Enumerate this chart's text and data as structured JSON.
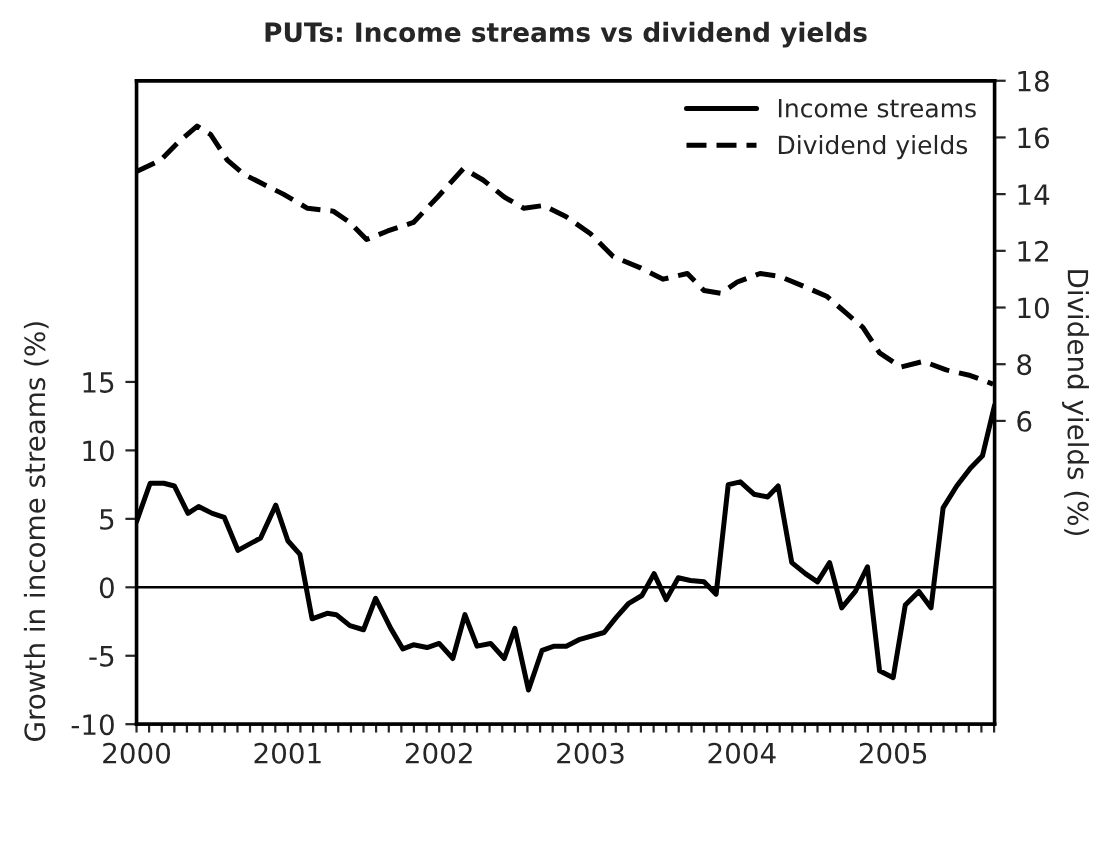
{
  "chart_data": {
    "type": "line",
    "title": "PUTs: Income streams vs dividend yields",
    "ylabel": "Growth in income streams (%)",
    "y2label": "Dividend yields (%)",
    "xlim": [
      2000,
      2005.67
    ],
    "ylim": [
      -10,
      37
    ],
    "y2lim": [
      -4.7,
      18
    ],
    "yticks": [
      -10,
      -5,
      0,
      5,
      10,
      15
    ],
    "y2ticks": [
      6,
      8,
      10,
      12,
      14,
      16,
      18
    ],
    "xticks": [
      2000,
      {
        "value": 2000.083,
        "label": null
      },
      {
        "value": 2000.167,
        "label": null
      },
      {
        "value": 2000.25,
        "label": null
      },
      {
        "value": 2000.333,
        "label": null
      },
      {
        "value": 2000.417,
        "label": null
      },
      {
        "value": 2000.5,
        "label": null
      },
      {
        "value": 2000.583,
        "label": null
      },
      {
        "value": 2000.667,
        "label": null
      },
      {
        "value": 2000.75,
        "label": null
      },
      {
        "value": 2000.833,
        "label": null
      },
      {
        "value": 2000.917,
        "label": null
      },
      2001,
      {
        "value": 2001.083,
        "label": null
      },
      {
        "value": 2001.167,
        "label": null
      },
      {
        "value": 2001.25,
        "label": null
      },
      {
        "value": 2001.333,
        "label": null
      },
      {
        "value": 2001.417,
        "label": null
      },
      {
        "value": 2001.5,
        "label": null
      },
      {
        "value": 2001.583,
        "label": null
      },
      {
        "value": 2001.667,
        "label": null
      },
      {
        "value": 2001.75,
        "label": null
      },
      {
        "value": 2001.833,
        "label": null
      },
      {
        "value": 2001.917,
        "label": null
      },
      2002,
      {
        "value": 2002.083,
        "label": null
      },
      {
        "value": 2002.167,
        "label": null
      },
      {
        "value": 2002.25,
        "label": null
      },
      {
        "value": 2002.333,
        "label": null
      },
      {
        "value": 2002.417,
        "label": null
      },
      {
        "value": 2002.5,
        "label": null
      },
      {
        "value": 2002.583,
        "label": null
      },
      {
        "value": 2002.667,
        "label": null
      },
      {
        "value": 2002.75,
        "label": null
      },
      {
        "value": 2002.833,
        "label": null
      },
      {
        "value": 2002.917,
        "label": null
      },
      2003,
      {
        "value": 2003.083,
        "label": null
      },
      {
        "value": 2003.167,
        "label": null
      },
      {
        "value": 2003.25,
        "label": null
      },
      {
        "value": 2003.333,
        "label": null
      },
      {
        "value": 2003.417,
        "label": null
      },
      {
        "value": 2003.5,
        "label": null
      },
      {
        "value": 2003.583,
        "label": null
      },
      {
        "value": 2003.667,
        "label": null
      },
      {
        "value": 2003.75,
        "label": null
      },
      {
        "value": 2003.833,
        "label": null
      },
      {
        "value": 2003.917,
        "label": null
      },
      2004,
      {
        "value": 2004.083,
        "label": null
      },
      {
        "value": 2004.167,
        "label": null
      },
      {
        "value": 2004.25,
        "label": null
      },
      {
        "value": 2004.333,
        "label": null
      },
      {
        "value": 2004.417,
        "label": null
      },
      {
        "value": 2004.5,
        "label": null
      },
      {
        "value": 2004.583,
        "label": null
      },
      {
        "value": 2004.667,
        "label": null
      },
      {
        "value": 2004.75,
        "label": null
      },
      {
        "value": 2004.833,
        "label": null
      },
      {
        "value": 2004.917,
        "label": null
      },
      2005,
      {
        "value": 2005.083,
        "label": null
      },
      {
        "value": 2005.167,
        "label": null
      },
      {
        "value": 2005.25,
        "label": null
      },
      {
        "value": 2005.333,
        "label": null
      },
      {
        "value": 2005.417,
        "label": null
      },
      {
        "value": 2005.5,
        "label": null
      },
      {
        "value": 2005.583,
        "label": null
      },
      {
        "value": 2005.667,
        "label": null
      }
    ],
    "ref_lines": [
      {
        "axis": "y",
        "value": 0,
        "color": "#000000"
      }
    ],
    "legend": "top right",
    "grid": false,
    "series": [
      {
        "name": "Income streams",
        "color": "#000000",
        "line_style": "solid",
        "x": [
          2000.0,
          2000.09,
          2000.18,
          2000.25,
          2000.34,
          2000.41,
          2000.5,
          2000.58,
          2000.67,
          2000.82,
          2000.92,
          2001.0,
          2001.08,
          2001.16,
          2001.26,
          2001.32,
          2001.41,
          2001.5,
          2001.58,
          2001.68,
          2001.76,
          2001.83,
          2001.92,
          2002.0,
          2002.09,
          2002.17,
          2002.25,
          2002.34,
          2002.43,
          2002.5,
          2002.59,
          2002.68,
          2002.76,
          2002.84,
          2002.93,
          2003.09,
          2003.17,
          2003.25,
          2003.34,
          2003.42,
          2003.5,
          2003.58,
          2003.66,
          2003.75,
          2003.83,
          2003.91,
          2003.99,
          2004.08,
          2004.17,
          2004.24,
          2004.33,
          2004.42,
          2004.5,
          2004.58,
          2004.66,
          2004.75,
          2004.83,
          2004.91,
          2005.0,
          2005.08,
          2005.17,
          2005.25,
          2005.33,
          2005.42,
          2005.51,
          2005.59,
          2005.67
        ],
        "values": [
          4.8,
          7.6,
          7.6,
          7.4,
          5.4,
          5.9,
          5.4,
          5.1,
          2.7,
          3.6,
          6.0,
          3.4,
          2.4,
          -2.3,
          -1.9,
          -2.0,
          -2.8,
          -3.1,
          -0.8,
          -3.0,
          -4.5,
          -4.2,
          -4.4,
          -4.1,
          -5.2,
          -2.0,
          -4.3,
          -4.1,
          -5.2,
          -3.0,
          -7.5,
          -4.6,
          -4.3,
          -4.3,
          -3.8,
          -3.3,
          -2.2,
          -1.2,
          -0.6,
          1.0,
          -0.9,
          0.7,
          0.5,
          0.4,
          -0.5,
          7.5,
          7.7,
          6.8,
          6.6,
          7.4,
          1.8,
          1.0,
          0.4,
          1.8,
          -1.5,
          -0.3,
          1.5,
          -6.1,
          -6.6,
          -1.3,
          -0.3,
          -1.5,
          5.8,
          7.4,
          8.7,
          9.6,
          13.3
        ]
      },
      {
        "name": "Dividend yields",
        "color": "#000000",
        "line_style": "dashed",
        "axis": "y2",
        "x": [
          2000.0,
          2000.16,
          2000.27,
          2000.4,
          2000.49,
          2000.6,
          2000.71,
          2000.82,
          2000.97,
          2001.13,
          2001.3,
          2001.41,
          2001.52,
          2001.66,
          2001.83,
          2001.99,
          2002.16,
          2002.29,
          2002.43,
          2002.56,
          2002.69,
          2002.84,
          2003.0,
          2003.15,
          2003.33,
          2003.48,
          2003.64,
          2003.75,
          2003.86,
          2003.97,
          2004.12,
          2004.25,
          2004.43,
          2004.56,
          2004.69,
          2004.8,
          2004.91,
          2005.05,
          2005.2,
          2005.35,
          2005.51,
          2005.66
        ],
        "values": [
          14.8,
          15.2,
          15.8,
          16.4,
          16.1,
          15.2,
          14.7,
          14.4,
          14.0,
          13.5,
          13.4,
          13.0,
          12.4,
          12.7,
          13.0,
          13.9,
          14.9,
          14.5,
          13.9,
          13.5,
          13.6,
          13.2,
          12.6,
          11.8,
          11.4,
          11.0,
          11.2,
          10.6,
          10.5,
          10.9,
          11.2,
          11.1,
          10.7,
          10.4,
          9.8,
          9.3,
          8.4,
          7.9,
          8.1,
          7.8,
          7.6,
          7.3
        ]
      }
    ]
  }
}
